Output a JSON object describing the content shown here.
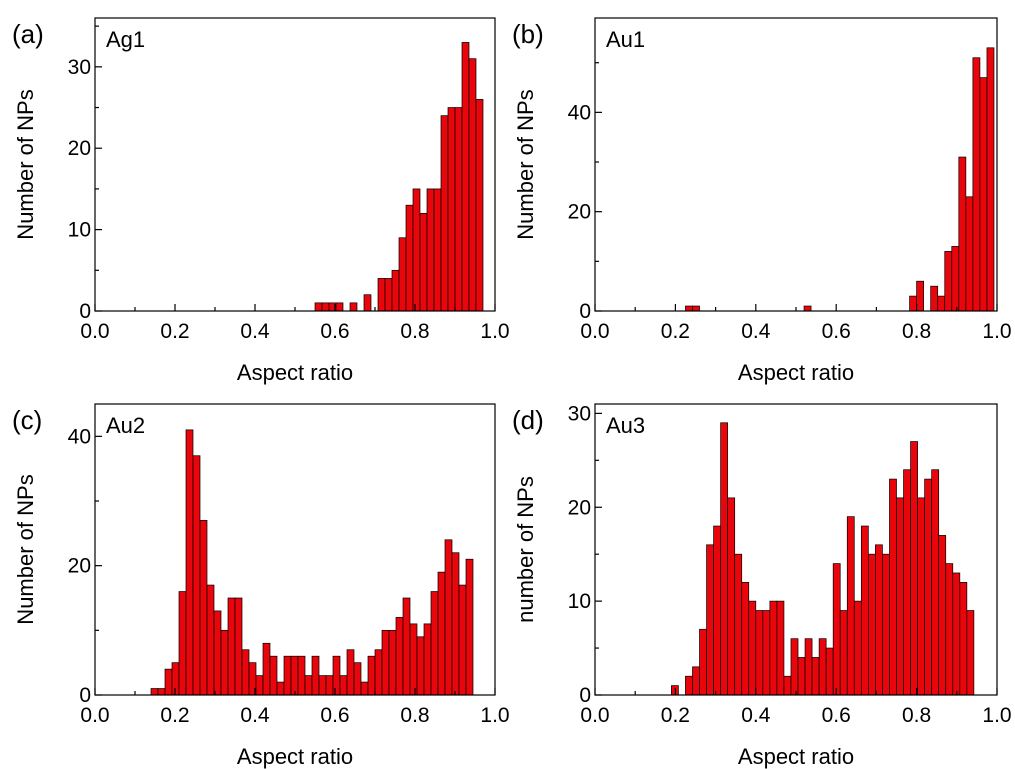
{
  "colors": {
    "bar_fill": "#e8050b",
    "bar_edge": "#000000",
    "axis": "#000000"
  },
  "chart_data": [
    {
      "type": "bar",
      "panel_label": "(a)",
      "sample": "Ag1",
      "xlabel": "Aspect ratio",
      "ylabel": "Number of NPs",
      "xlim": [
        0.0,
        1.0
      ],
      "ylim": [
        0,
        36
      ],
      "xticks": [
        "0.0",
        "0.2",
        "0.4",
        "0.6",
        "0.8",
        "1.0"
      ],
      "yticks": [
        0,
        10,
        20,
        30
      ],
      "bin_width": 0.0175,
      "bins": [
        {
          "x": 0.55,
          "y": 1
        },
        {
          "x": 0.5675,
          "y": 1
        },
        {
          "x": 0.585,
          "y": 1
        },
        {
          "x": 0.6025,
          "y": 1
        },
        {
          "x": 0.6375,
          "y": 1
        },
        {
          "x": 0.6725,
          "y": 2
        },
        {
          "x": 0.7075,
          "y": 4
        },
        {
          "x": 0.725,
          "y": 4
        },
        {
          "x": 0.7425,
          "y": 5
        },
        {
          "x": 0.76,
          "y": 9
        },
        {
          "x": 0.7775,
          "y": 13
        },
        {
          "x": 0.795,
          "y": 15
        },
        {
          "x": 0.8125,
          "y": 12
        },
        {
          "x": 0.83,
          "y": 15
        },
        {
          "x": 0.8475,
          "y": 15
        },
        {
          "x": 0.865,
          "y": 24
        },
        {
          "x": 0.8825,
          "y": 25
        },
        {
          "x": 0.9,
          "y": 25
        },
        {
          "x": 0.9175,
          "y": 33
        },
        {
          "x": 0.935,
          "y": 31
        },
        {
          "x": 0.9525,
          "y": 26
        }
      ]
    },
    {
      "type": "bar",
      "panel_label": "(b)",
      "sample": "Au1",
      "xlabel": "Aspect ratio",
      "ylabel": "Number of NPs",
      "xlim": [
        0.0,
        1.0
      ],
      "ylim": [
        0,
        59
      ],
      "xticks": [
        "0.0",
        "0.2",
        "0.4",
        "0.6",
        "0.8",
        "1.0"
      ],
      "yticks": [
        0,
        20,
        40
      ],
      "bin_width": 0.0175,
      "bins": [
        {
          "x": 0.225,
          "y": 1
        },
        {
          "x": 0.2425,
          "y": 1
        },
        {
          "x": 0.52,
          "y": 1
        },
        {
          "x": 0.7825,
          "y": 3
        },
        {
          "x": 0.8,
          "y": 6
        },
        {
          "x": 0.835,
          "y": 5
        },
        {
          "x": 0.8525,
          "y": 3
        },
        {
          "x": 0.87,
          "y": 12
        },
        {
          "x": 0.8875,
          "y": 13
        },
        {
          "x": 0.905,
          "y": 31
        },
        {
          "x": 0.9225,
          "y": 23
        },
        {
          "x": 0.94,
          "y": 51
        },
        {
          "x": 0.9575,
          "y": 47
        },
        {
          "x": 0.975,
          "y": 53
        }
      ]
    },
    {
      "type": "bar",
      "panel_label": "(c)",
      "sample": "Au2",
      "xlabel": "Aspect ratio",
      "ylabel": "Number of NPs",
      "xlim": [
        0.0,
        1.0
      ],
      "ylim": [
        0,
        45
      ],
      "xticks": [
        "0.0",
        "0.2",
        "0.4",
        "0.6",
        "0.8",
        "1.0"
      ],
      "yticks": [
        0,
        20,
        40
      ],
      "bin_width": 0.0175,
      "bins": [
        {
          "x": 0.14,
          "y": 1
        },
        {
          "x": 0.1575,
          "y": 1
        },
        {
          "x": 0.175,
          "y": 4
        },
        {
          "x": 0.1925,
          "y": 5
        },
        {
          "x": 0.21,
          "y": 16
        },
        {
          "x": 0.2275,
          "y": 41
        },
        {
          "x": 0.245,
          "y": 37
        },
        {
          "x": 0.2625,
          "y": 27
        },
        {
          "x": 0.28,
          "y": 17
        },
        {
          "x": 0.2975,
          "y": 13
        },
        {
          "x": 0.315,
          "y": 10
        },
        {
          "x": 0.3325,
          "y": 15
        },
        {
          "x": 0.35,
          "y": 15
        },
        {
          "x": 0.3675,
          "y": 7
        },
        {
          "x": 0.385,
          "y": 5
        },
        {
          "x": 0.4025,
          "y": 3
        },
        {
          "x": 0.42,
          "y": 8
        },
        {
          "x": 0.4375,
          "y": 6
        },
        {
          "x": 0.455,
          "y": 2
        },
        {
          "x": 0.4725,
          "y": 6
        },
        {
          "x": 0.49,
          "y": 6
        },
        {
          "x": 0.5075,
          "y": 6
        },
        {
          "x": 0.525,
          "y": 3
        },
        {
          "x": 0.5425,
          "y": 6
        },
        {
          "x": 0.56,
          "y": 3
        },
        {
          "x": 0.5775,
          "y": 3
        },
        {
          "x": 0.595,
          "y": 6
        },
        {
          "x": 0.6125,
          "y": 3
        },
        {
          "x": 0.63,
          "y": 7
        },
        {
          "x": 0.6475,
          "y": 5
        },
        {
          "x": 0.665,
          "y": 2
        },
        {
          "x": 0.6825,
          "y": 6
        },
        {
          "x": 0.7,
          "y": 7
        },
        {
          "x": 0.7175,
          "y": 10
        },
        {
          "x": 0.735,
          "y": 10
        },
        {
          "x": 0.7525,
          "y": 12
        },
        {
          "x": 0.77,
          "y": 15
        },
        {
          "x": 0.7875,
          "y": 11
        },
        {
          "x": 0.805,
          "y": 9
        },
        {
          "x": 0.8225,
          "y": 11
        },
        {
          "x": 0.84,
          "y": 16
        },
        {
          "x": 0.8575,
          "y": 19
        },
        {
          "x": 0.875,
          "y": 24
        },
        {
          "x": 0.8925,
          "y": 22
        },
        {
          "x": 0.91,
          "y": 17
        },
        {
          "x": 0.9275,
          "y": 21
        }
      ]
    },
    {
      "type": "bar",
      "panel_label": "(d)",
      "sample": "Au3",
      "xlabel": "Aspect ratio",
      "ylabel": "number of NPs",
      "xlim": [
        0.0,
        1.0
      ],
      "ylim": [
        0,
        31
      ],
      "xticks": [
        "0.0",
        "0.2",
        "0.4",
        "0.6",
        "0.8",
        "1.0"
      ],
      "yticks": [
        0,
        10,
        20,
        30
      ],
      "bin_width": 0.0175,
      "bins": [
        {
          "x": 0.19,
          "y": 1
        },
        {
          "x": 0.225,
          "y": 2
        },
        {
          "x": 0.2425,
          "y": 3
        },
        {
          "x": 0.26,
          "y": 7
        },
        {
          "x": 0.2775,
          "y": 16
        },
        {
          "x": 0.295,
          "y": 18
        },
        {
          "x": 0.3125,
          "y": 29
        },
        {
          "x": 0.33,
          "y": 21
        },
        {
          "x": 0.3475,
          "y": 15
        },
        {
          "x": 0.365,
          "y": 12
        },
        {
          "x": 0.3825,
          "y": 10
        },
        {
          "x": 0.4,
          "y": 9
        },
        {
          "x": 0.4175,
          "y": 9
        },
        {
          "x": 0.435,
          "y": 10
        },
        {
          "x": 0.4525,
          "y": 10
        },
        {
          "x": 0.47,
          "y": 2
        },
        {
          "x": 0.4875,
          "y": 6
        },
        {
          "x": 0.505,
          "y": 4
        },
        {
          "x": 0.5225,
          "y": 6
        },
        {
          "x": 0.54,
          "y": 4
        },
        {
          "x": 0.5575,
          "y": 6
        },
        {
          "x": 0.575,
          "y": 5
        },
        {
          "x": 0.5925,
          "y": 14
        },
        {
          "x": 0.61,
          "y": 9
        },
        {
          "x": 0.6275,
          "y": 19
        },
        {
          "x": 0.645,
          "y": 10
        },
        {
          "x": 0.6625,
          "y": 18
        },
        {
          "x": 0.68,
          "y": 15
        },
        {
          "x": 0.6975,
          "y": 16
        },
        {
          "x": 0.715,
          "y": 15
        },
        {
          "x": 0.7325,
          "y": 23
        },
        {
          "x": 0.75,
          "y": 21
        },
        {
          "x": 0.7675,
          "y": 24
        },
        {
          "x": 0.785,
          "y": 27
        },
        {
          "x": 0.8025,
          "y": 21
        },
        {
          "x": 0.82,
          "y": 23
        },
        {
          "x": 0.8375,
          "y": 24
        },
        {
          "x": 0.855,
          "y": 17
        },
        {
          "x": 0.8725,
          "y": 14
        },
        {
          "x": 0.89,
          "y": 13
        },
        {
          "x": 0.9075,
          "y": 12
        },
        {
          "x": 0.925,
          "y": 9
        }
      ]
    }
  ]
}
